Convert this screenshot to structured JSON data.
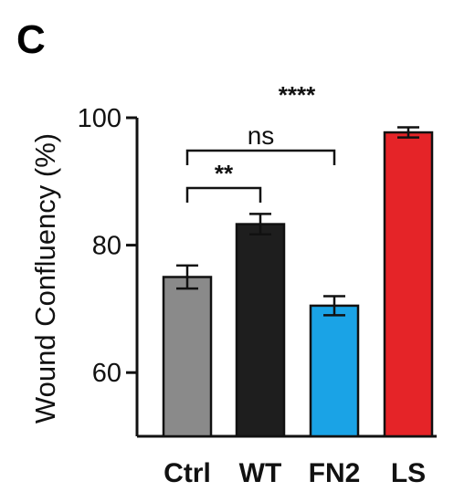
{
  "panel_label": "C",
  "chart_data": {
    "type": "bar",
    "categories": [
      "Ctrl",
      "WT",
      "FN2",
      "LS"
    ],
    "values": [
      75.0,
      83.3,
      70.5,
      97.7
    ],
    "errors": [
      1.8,
      1.6,
      1.5,
      0.8
    ],
    "colors": [
      "#8a8a8a",
      "#1e1e1e",
      "#1aa3e6",
      "#e52428"
    ],
    "title": "",
    "xlabel": "",
    "ylabel": "Wound Confluency (%)",
    "ylim": [
      50,
      100
    ],
    "yticks": [
      60,
      80,
      100
    ],
    "significance": [
      {
        "from": "Ctrl",
        "to": "WT",
        "label": "**"
      },
      {
        "from": "Ctrl",
        "to": "FN2",
        "label": "ns"
      },
      {
        "at": "WT-FN2",
        "label": "****"
      }
    ],
    "grid": false,
    "legend": "none"
  }
}
